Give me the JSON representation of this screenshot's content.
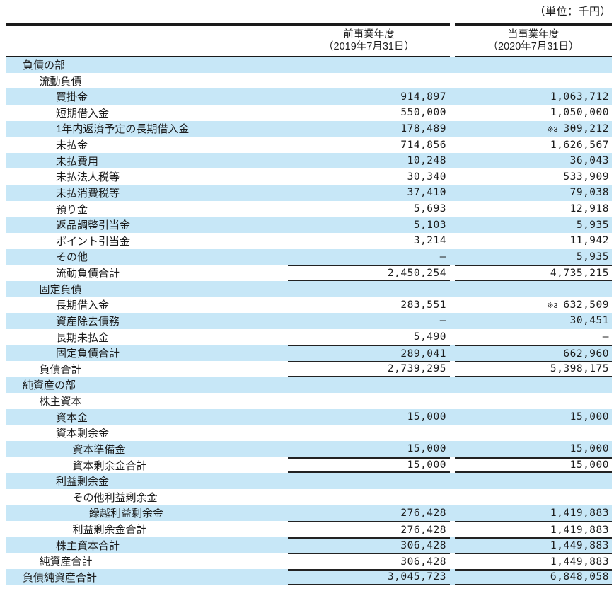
{
  "unit_label": "（単位：千円）",
  "columns": [
    {
      "title": "前事業年度",
      "subtitle": "（2019年7月31日）"
    },
    {
      "title": "当事業年度",
      "subtitle": "（2020年7月31日）"
    }
  ],
  "colors": {
    "row_shading": "#c7e7f7",
    "rule": "#1a1a1a",
    "text": "#1c1c1c"
  },
  "rows": [
    {
      "label": "負債の部",
      "indent": 0,
      "shaded": true,
      "v1": "",
      "v2": ""
    },
    {
      "label": "流動負債",
      "indent": 1,
      "shaded": false,
      "v1": "",
      "v2": ""
    },
    {
      "label": "買掛金",
      "indent": 2,
      "shaded": true,
      "v1": "914,897",
      "v2": "1,063,712"
    },
    {
      "label": "短期借入金",
      "indent": 2,
      "shaded": false,
      "v1": "550,000",
      "v2": "1,050,000"
    },
    {
      "label": "1年内返済予定の長期借入金",
      "indent": 2,
      "shaded": true,
      "v1": "178,489",
      "n2": "※3",
      "v2": "309,212"
    },
    {
      "label": "未払金",
      "indent": 2,
      "shaded": false,
      "v1": "714,856",
      "v2": "1,626,567"
    },
    {
      "label": "未払費用",
      "indent": 2,
      "shaded": true,
      "v1": "10,248",
      "v2": "36,043"
    },
    {
      "label": "未払法人税等",
      "indent": 2,
      "shaded": false,
      "v1": "30,340",
      "v2": "533,909"
    },
    {
      "label": "未払消費税等",
      "indent": 2,
      "shaded": true,
      "v1": "37,410",
      "v2": "79,038"
    },
    {
      "label": "預り金",
      "indent": 2,
      "shaded": false,
      "v1": "5,693",
      "v2": "12,918"
    },
    {
      "label": "返品調整引当金",
      "indent": 2,
      "shaded": true,
      "v1": "5,103",
      "v2": "5,935"
    },
    {
      "label": "ポイント引当金",
      "indent": 2,
      "shaded": false,
      "v1": "3,214",
      "v2": "11,942"
    },
    {
      "label": "その他",
      "indent": 2,
      "shaded": true,
      "v1": "—",
      "v2": "5,935"
    },
    {
      "label": "流動負債合計",
      "indent": 2,
      "shaded": false,
      "v1": "2,450,254",
      "v2": "4,735,215",
      "rule_top": true,
      "rule_bottom": true
    },
    {
      "label": "固定負債",
      "indent": 1,
      "shaded": true,
      "v1": "",
      "v2": ""
    },
    {
      "label": "長期借入金",
      "indent": 2,
      "shaded": false,
      "v1": "283,551",
      "n2": "※3",
      "v2": "632,509"
    },
    {
      "label": "資産除去債務",
      "indent": 2,
      "shaded": true,
      "v1": "—",
      "v2": "30,451"
    },
    {
      "label": "長期未払金",
      "indent": 2,
      "shaded": false,
      "v1": "5,490",
      "v2": "—"
    },
    {
      "label": "固定負債合計",
      "indent": 2,
      "shaded": true,
      "v1": "289,041",
      "v2": "662,960",
      "rule_top": true
    },
    {
      "label": "負債合計",
      "indent": 1,
      "shaded": false,
      "v1": "2,739,295",
      "v2": "5,398,175",
      "rule_top": true,
      "rule_bottom": true
    },
    {
      "label": "純資産の部",
      "indent": 0,
      "shaded": true,
      "v1": "",
      "v2": ""
    },
    {
      "label": "株主資本",
      "indent": 1,
      "shaded": false,
      "v1": "",
      "v2": ""
    },
    {
      "label": "資本金",
      "indent": 2,
      "shaded": true,
      "v1": "15,000",
      "v2": "15,000"
    },
    {
      "label": "資本剰余金",
      "indent": 2,
      "shaded": false,
      "v1": "",
      "v2": ""
    },
    {
      "label": "資本準備金",
      "indent": 3,
      "shaded": true,
      "v1": "15,000",
      "v2": "15,000"
    },
    {
      "label": "資本剰余金合計",
      "indent": 3,
      "shaded": false,
      "v1": "15,000",
      "v2": "15,000",
      "rule_top": true,
      "rule_bottom": true
    },
    {
      "label": "利益剰余金",
      "indent": 2,
      "shaded": true,
      "v1": "",
      "v2": ""
    },
    {
      "label": "その他利益剰余金",
      "indent": 3,
      "shaded": false,
      "v1": "",
      "v2": ""
    },
    {
      "label": "繰越利益剰余金",
      "indent": 4,
      "shaded": true,
      "v1": "276,428",
      "v2": "1,419,883"
    },
    {
      "label": "利益剰余金合計",
      "indent": 3,
      "shaded": false,
      "v1": "276,428",
      "v2": "1,419,883",
      "rule_top": true
    },
    {
      "label": "株主資本合計",
      "indent": 2,
      "shaded": true,
      "v1": "306,428",
      "v2": "1,449,883",
      "rule_top": true
    },
    {
      "label": "純資産合計",
      "indent": 1,
      "shaded": false,
      "v1": "306,428",
      "v2": "1,449,883",
      "rule_top": true
    },
    {
      "label": "負債純資産合計",
      "indent": 0,
      "shaded": true,
      "v1": "3,045,723",
      "v2": "6,848,058",
      "rule_top": true,
      "rule_bottom": true
    }
  ]
}
